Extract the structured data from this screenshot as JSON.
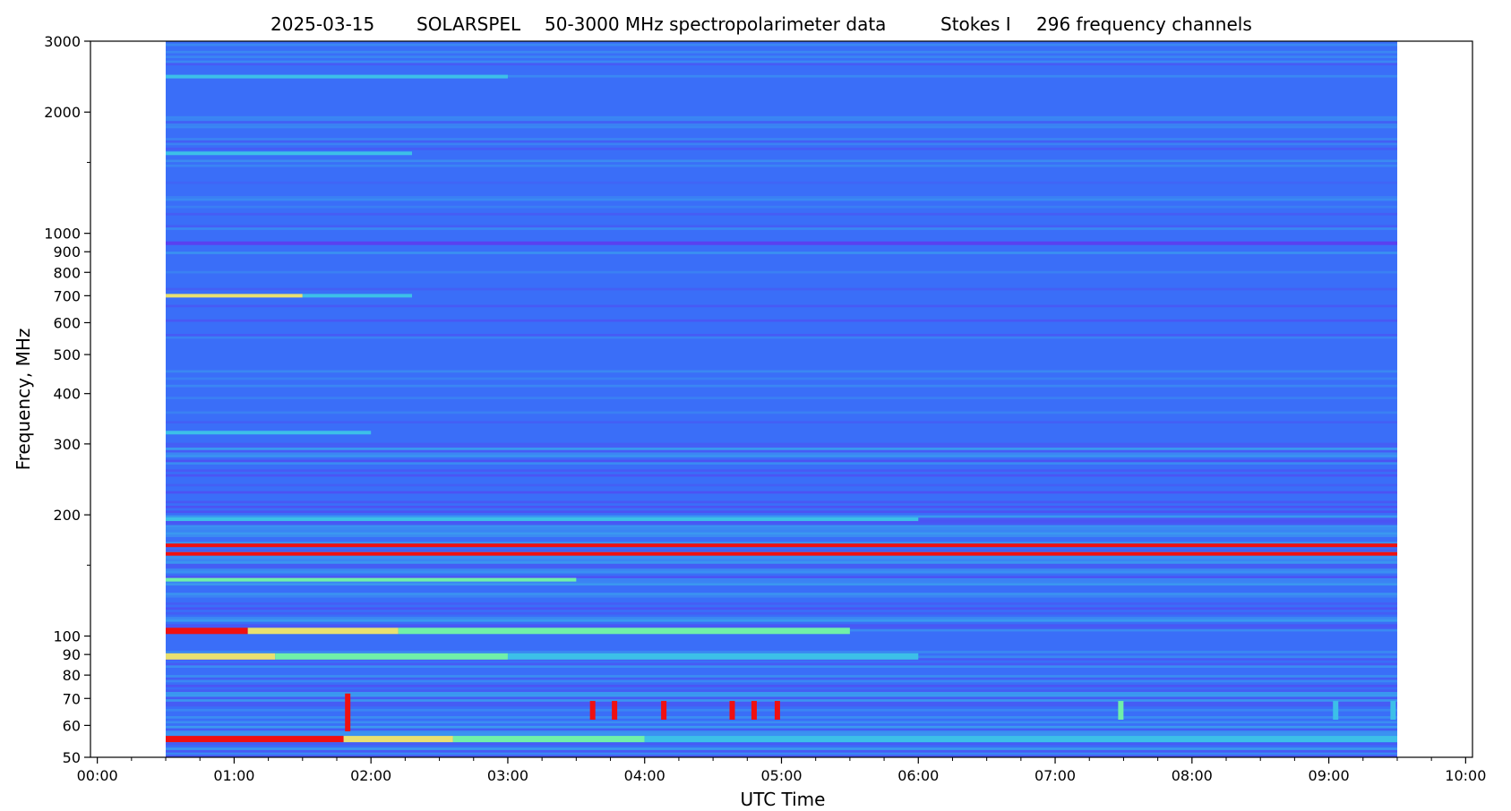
{
  "chart_data": {
    "type": "heatmap",
    "title_parts": [
      "2025-03-15",
      "SOLARSPEL",
      "50-3000 MHz spectropolarimeter data",
      "Stokes I",
      "296 frequency channels"
    ],
    "xlabel": "UTC Time",
    "ylabel": "Frequency, MHz",
    "x_unit": "hours UTC",
    "xlim": [
      -0.05,
      10.05
    ],
    "ylim": [
      50,
      3000
    ],
    "y_scale": "log",
    "x_ticks": [
      {
        "value": 0,
        "label": "00:00"
      },
      {
        "value": 1,
        "label": "01:00"
      },
      {
        "value": 2,
        "label": "02:00"
      },
      {
        "value": 3,
        "label": "03:00"
      },
      {
        "value": 4,
        "label": "04:00"
      },
      {
        "value": 5,
        "label": "05:00"
      },
      {
        "value": 6,
        "label": "06:00"
      },
      {
        "value": 7,
        "label": "07:00"
      },
      {
        "value": 8,
        "label": "08:00"
      },
      {
        "value": 9,
        "label": "09:00"
      },
      {
        "value": 10,
        "label": "10:00"
      }
    ],
    "y_ticks": [
      {
        "value": 50,
        "label": "50"
      },
      {
        "value": 60,
        "label": "60"
      },
      {
        "value": 70,
        "label": "70"
      },
      {
        "value": 80,
        "label": "80"
      },
      {
        "value": 90,
        "label": "90"
      },
      {
        "value": 100,
        "label": "100"
      },
      {
        "value": 200,
        "label": "200"
      },
      {
        "value": 300,
        "label": "300"
      },
      {
        "value": 400,
        "label": "400"
      },
      {
        "value": 500,
        "label": "500"
      },
      {
        "value": 600,
        "label": "600"
      },
      {
        "value": 700,
        "label": "700"
      },
      {
        "value": 800,
        "label": "800"
      },
      {
        "value": 900,
        "label": "900"
      },
      {
        "value": 1000,
        "label": "1000"
      },
      {
        "value": 2000,
        "label": "2000"
      },
      {
        "value": 3000,
        "label": "3000"
      }
    ],
    "y_minor_ticks": [
      150,
      1500
    ],
    "x_minor_ticks": [
      0.25,
      0.5,
      0.75,
      1.25,
      1.5,
      1.75,
      2.25,
      2.5,
      2.75,
      3.25,
      3.5,
      3.75,
      4.25,
      4.5,
      4.75,
      5.25,
      5.5,
      5.75,
      6.25,
      6.5,
      6.75,
      7.25,
      7.5,
      7.75,
      8.25,
      8.5,
      8.75,
      9.25,
      9.5,
      9.75
    ],
    "data_time_range": [
      0.5,
      9.5
    ],
    "colormap": "rainbow",
    "colors": {
      "background": "#3a6ef8",
      "low": "#5a40f0",
      "mid": "#3cc0e8",
      "high_green": "#70f0a8",
      "yellow": "#e8e070",
      "red": "#f01010"
    },
    "bands": [
      {
        "freq": 55.5,
        "t_start": 0.5,
        "t_end": 1.8,
        "intensity": "red"
      },
      {
        "freq": 55.5,
        "t_start": 1.8,
        "t_end": 2.6,
        "intensity": "yellow"
      },
      {
        "freq": 55.5,
        "t_start": 2.6,
        "t_end": 4.0,
        "intensity": "high_green"
      },
      {
        "freq": 55.5,
        "t_start": 4.0,
        "t_end": 9.5,
        "intensity": "mid"
      },
      {
        "freq": 89,
        "t_start": 0.5,
        "t_end": 1.3,
        "intensity": "yellow"
      },
      {
        "freq": 89,
        "t_start": 1.3,
        "t_end": 3.0,
        "intensity": "high_green"
      },
      {
        "freq": 89,
        "t_start": 3.0,
        "t_end": 6.0,
        "intensity": "mid"
      },
      {
        "freq": 103,
        "t_start": 0.5,
        "t_end": 1.1,
        "intensity": "red"
      },
      {
        "freq": 103,
        "t_start": 1.1,
        "t_end": 2.2,
        "intensity": "yellow"
      },
      {
        "freq": 103,
        "t_start": 2.2,
        "t_end": 5.5,
        "intensity": "high_green"
      },
      {
        "freq": 138,
        "t_start": 0.5,
        "t_end": 3.5,
        "intensity": "high_green"
      },
      {
        "freq": 160,
        "t_start": 0.5,
        "t_end": 9.5,
        "intensity": "red"
      },
      {
        "freq": 168,
        "t_start": 0.5,
        "t_end": 9.5,
        "intensity": "red"
      },
      {
        "freq": 195,
        "t_start": 0.5,
        "t_end": 6.0,
        "intensity": "mid"
      },
      {
        "freq": 320,
        "t_start": 0.5,
        "t_end": 2.0,
        "intensity": "mid"
      },
      {
        "freq": 700,
        "t_start": 0.5,
        "t_end": 1.5,
        "intensity": "yellow"
      },
      {
        "freq": 700,
        "t_start": 1.5,
        "t_end": 2.3,
        "intensity": "mid"
      },
      {
        "freq": 945,
        "t_start": 0.5,
        "t_end": 9.5,
        "intensity": "low"
      },
      {
        "freq": 1580,
        "t_start": 0.5,
        "t_end": 2.3,
        "intensity": "mid"
      },
      {
        "freq": 2450,
        "t_start": 0.5,
        "t_end": 3.0,
        "intensity": "mid"
      }
    ],
    "bursts": [
      {
        "t": 1.83,
        "f_low": 58,
        "f_high": 72,
        "intensity": "red"
      },
      {
        "t": 3.62,
        "f_low": 62,
        "f_high": 69,
        "intensity": "red"
      },
      {
        "t": 3.78,
        "f_low": 62,
        "f_high": 69,
        "intensity": "red"
      },
      {
        "t": 4.14,
        "f_low": 62,
        "f_high": 69,
        "intensity": "red"
      },
      {
        "t": 4.64,
        "f_low": 62,
        "f_high": 69,
        "intensity": "red"
      },
      {
        "t": 4.8,
        "f_low": 62,
        "f_high": 69,
        "intensity": "red"
      },
      {
        "t": 4.97,
        "f_low": 62,
        "f_high": 69,
        "intensity": "red"
      },
      {
        "t": 7.48,
        "f_low": 62,
        "f_high": 69,
        "intensity": "high_green"
      },
      {
        "t": 9.05,
        "f_low": 62,
        "f_high": 69,
        "intensity": "mid"
      },
      {
        "t": 9.47,
        "f_low": 62,
        "f_high": 69,
        "intensity": "mid"
      }
    ]
  }
}
